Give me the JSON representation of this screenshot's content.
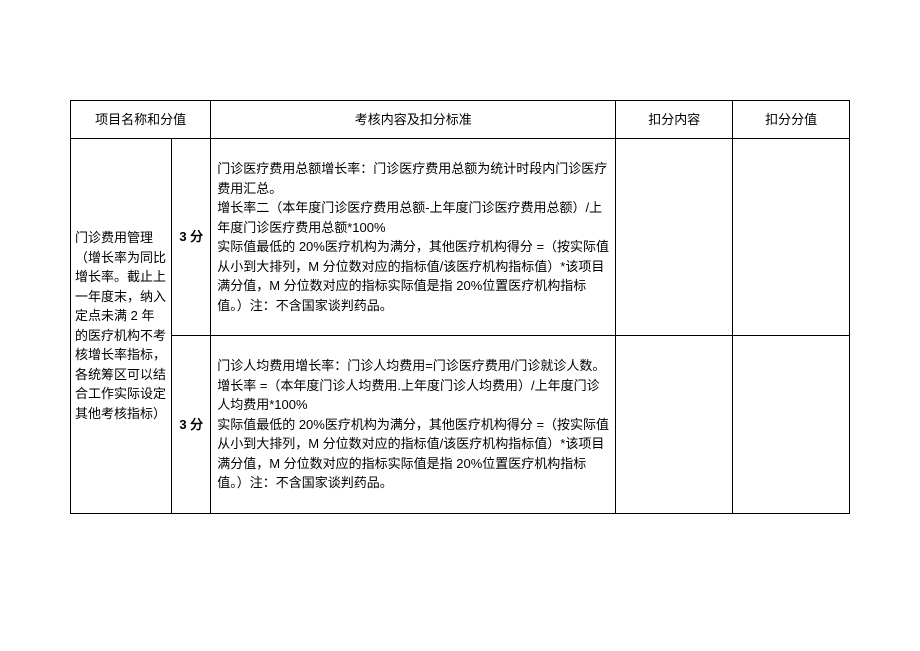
{
  "headers": {
    "name": "项目名称和分值",
    "content": "考核内容及扣分标准",
    "deduction": "扣分内容",
    "deduction_value": "扣分分值"
  },
  "project_name": "门诊费用管理（增长率为同比增长率。截止上一年度末，纳入定点未满 2 年的医疗机构不考核增长率指标，各统筹区可以结合工作实际设定其他考核指标）",
  "rows": [
    {
      "score": "3 分",
      "content": "门诊医疗费用总额增长率：门诊医疗费用总额为统计时段内门诊医疗费用汇总。\n增长率二（本年度门诊医疗费用总额-上年度门诊医疗费用总额）/上年度门诊医疗费用总额*100%\n实际值最低的 20%医疗机构为满分，其他医疗机构得分 =（按实际值从小到大排列，M 分位数对应的指标值/该医疗机构指标值）*该项目满分值，M 分位数对应的指标实际值是指 20%位置医疗机构指标值。）注：不含国家谈判药品。"
    },
    {
      "score": "3 分",
      "content": "门诊人均费用增长率：门诊人均费用=门诊医疗费用/门诊就诊人数。\n增长率 =（本年度门诊人均费用.上年度门诊人均费用）/上年度门诊人均费用*100%\n实际值最低的 20%医疗机构为满分，其他医疗机构得分 =（按实际值从小到大排列，M 分位数对应的指标值/该医疗机构指标值）*该项目满分值，M 分位数对应的指标实际值是指 20%位置医疗机构指标值。）注：不含国家谈判药品。"
    }
  ]
}
